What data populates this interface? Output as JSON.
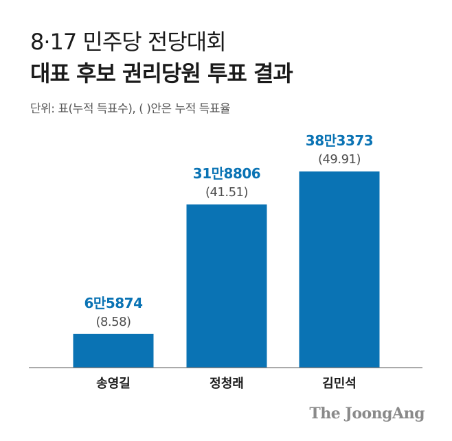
{
  "header": {
    "title_line1": "8·17 민주당 전당대회",
    "title_line2": "대표 후보 권리당원 투표 결과",
    "unit_note": "단위: 표(누적 득표수), ( )안은 누적 득표율"
  },
  "colors": {
    "bar": "#0a73b4",
    "value_label": "#0a73b4",
    "pct_label": "#4d4d4d",
    "axis": "#555555"
  },
  "chart_data": {
    "type": "bar",
    "categories": [
      "송영길",
      "정청래",
      "김민석"
    ],
    "values": [
      65874,
      318806,
      383373
    ],
    "value_labels": [
      "6만5874",
      "31만8806",
      "38만3373"
    ],
    "pct_labels": [
      "(8.58)",
      "(41.51)",
      "(49.91)"
    ],
    "percentages": [
      8.58,
      41.51,
      49.91
    ],
    "title": "",
    "xlabel": "",
    "ylabel": "",
    "ylim": [
      0,
      383373
    ],
    "grid": false,
    "legend": "none"
  },
  "footer": {
    "brand": "The JoongAng"
  }
}
